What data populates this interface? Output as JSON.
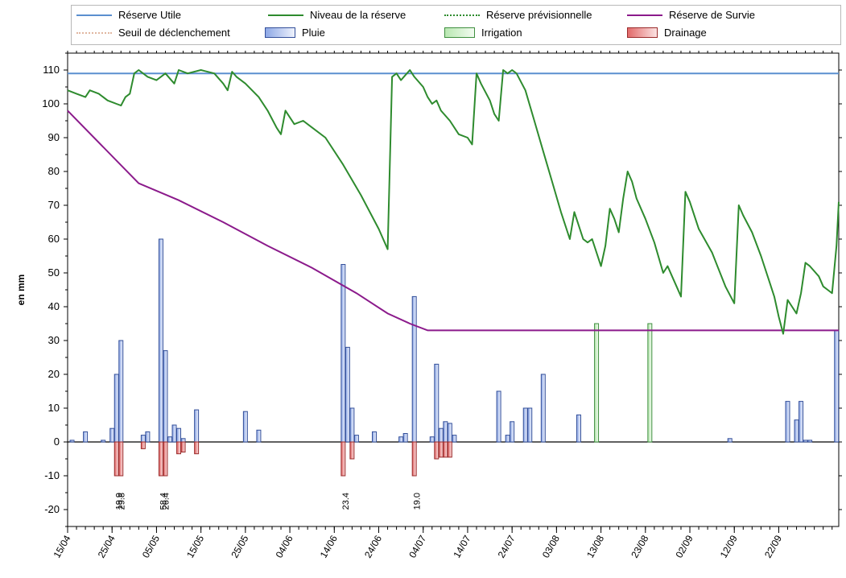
{
  "chart_data": {
    "type": "line",
    "ylabel": "en mm",
    "ylim": [
      -25,
      115
    ],
    "yticks": [
      -20,
      -10,
      0,
      10,
      20,
      30,
      40,
      50,
      60,
      70,
      80,
      90,
      100,
      110
    ],
    "grid": false,
    "legend_position": "top",
    "x_tick_labels": [
      "15/04",
      "25/04",
      "05/05",
      "15/05",
      "25/05",
      "04/06",
      "14/06",
      "24/06",
      "04/07",
      "14/07",
      "24/07",
      "03/08",
      "13/08",
      "23/08",
      "02/09",
      "12/09",
      "22/09"
    ],
    "x_range_days": [
      0,
      162
    ],
    "legend": [
      {
        "name": "Réserve Utile",
        "kind": "line",
        "color": "#5b8fcf",
        "dash": "none"
      },
      {
        "name": "Niveau de la réserve",
        "kind": "line",
        "color": "#2e8b2e",
        "dash": "none"
      },
      {
        "name": "Réserve prévisionnelle",
        "kind": "line",
        "color": "#2e8b2e",
        "dash": "dotted"
      },
      {
        "name": "Réserve de Survie",
        "kind": "line",
        "color": "#8b1a8b",
        "dash": "none"
      },
      {
        "name": "Seuil de déclenchement",
        "kind": "line",
        "color": "#e0b6a0",
        "dash": "dotted"
      },
      {
        "name": "Pluie",
        "kind": "box",
        "color": "#b7c9ef"
      },
      {
        "name": "Irrigation",
        "kind": "box",
        "color": "#d4f0d0"
      },
      {
        "name": "Drainage",
        "kind": "box",
        "color": "#ef9a9a"
      }
    ],
    "reserve_utile": 109,
    "niveau_reserve": [
      [
        0,
        104
      ],
      [
        2,
        103
      ],
      [
        4,
        102
      ],
      [
        5,
        104
      ],
      [
        7,
        103
      ],
      [
        9,
        101
      ],
      [
        11,
        100
      ],
      [
        12,
        99.5
      ],
      [
        13,
        102
      ],
      [
        14,
        103
      ],
      [
        15,
        109
      ],
      [
        16,
        110
      ],
      [
        18,
        108
      ],
      [
        20,
        107
      ],
      [
        22,
        109
      ],
      [
        24,
        106
      ],
      [
        25,
        110
      ],
      [
        27,
        109
      ],
      [
        30,
        110
      ],
      [
        33,
        109
      ],
      [
        35,
        106
      ],
      [
        36,
        104
      ],
      [
        37,
        109.5
      ],
      [
        38,
        108
      ],
      [
        40,
        106
      ],
      [
        43,
        102
      ],
      [
        45,
        98
      ],
      [
        47,
        93
      ],
      [
        48,
        91
      ],
      [
        49,
        98
      ],
      [
        51,
        94
      ],
      [
        53,
        95
      ],
      [
        55,
        93
      ],
      [
        58,
        90
      ],
      [
        62,
        82
      ],
      [
        66,
        73
      ],
      [
        70,
        63
      ],
      [
        72,
        57
      ],
      [
        73,
        108
      ],
      [
        74,
        109
      ],
      [
        75,
        107
      ],
      [
        76,
        108.5
      ],
      [
        77,
        110
      ],
      [
        78,
        108
      ],
      [
        80,
        105
      ],
      [
        81,
        102
      ],
      [
        82,
        100
      ],
      [
        83,
        101
      ],
      [
        84,
        98
      ],
      [
        86,
        95
      ],
      [
        88,
        91
      ],
      [
        90,
        90
      ],
      [
        91,
        88
      ],
      [
        92,
        109
      ],
      [
        93,
        106
      ],
      [
        95,
        101
      ],
      [
        96,
        97
      ],
      [
        97,
        95
      ],
      [
        98,
        110
      ],
      [
        99,
        109
      ],
      [
        100,
        110
      ],
      [
        101,
        109
      ],
      [
        103,
        104
      ],
      [
        105,
        95
      ],
      [
        107,
        86
      ],
      [
        109,
        77
      ],
      [
        111,
        68
      ],
      [
        113,
        60
      ],
      [
        114,
        68
      ],
      [
        115,
        64
      ],
      [
        116,
        60
      ],
      [
        117,
        59
      ],
      [
        118,
        60
      ],
      [
        120,
        52
      ],
      [
        121,
        58
      ],
      [
        122,
        69
      ],
      [
        123,
        66
      ],
      [
        124,
        62
      ],
      [
        125,
        72
      ],
      [
        126,
        80
      ],
      [
        127,
        77
      ],
      [
        128,
        72
      ],
      [
        130,
        66
      ],
      [
        132,
        59
      ],
      [
        134,
        50
      ],
      [
        135,
        52
      ],
      [
        136,
        49
      ],
      [
        137,
        46
      ],
      [
        138,
        43
      ],
      [
        139,
        74
      ],
      [
        140,
        71
      ],
      [
        142,
        63
      ],
      [
        145,
        56
      ],
      [
        148,
        46
      ],
      [
        150,
        41
      ],
      [
        151,
        70
      ],
      [
        152,
        67
      ],
      [
        154,
        62
      ],
      [
        156,
        55
      ],
      [
        158,
        47
      ],
      [
        159,
        43
      ],
      [
        160,
        37
      ],
      [
        161,
        32
      ],
      [
        162,
        42
      ],
      [
        163,
        40
      ],
      [
        164,
        38
      ],
      [
        165,
        44
      ],
      [
        166,
        53
      ],
      [
        167,
        52
      ],
      [
        169,
        49
      ],
      [
        170,
        46
      ],
      [
        171,
        45
      ],
      [
        172,
        44
      ],
      [
        173,
        58
      ],
      [
        173.5,
        71
      ]
    ],
    "reserve_survie": [
      [
        0,
        98
      ],
      [
        16,
        76.5
      ],
      [
        25,
        71.5
      ],
      [
        35,
        65
      ],
      [
        45,
        58
      ],
      [
        55,
        51.5
      ],
      [
        65,
        44
      ],
      [
        72,
        38
      ],
      [
        77,
        35
      ],
      [
        81,
        33
      ],
      [
        173.5,
        33
      ]
    ],
    "pluie": [
      [
        1,
        0.5
      ],
      [
        4,
        3
      ],
      [
        8,
        0.5
      ],
      [
        10,
        4
      ],
      [
        11,
        20
      ],
      [
        12,
        30
      ],
      [
        17,
        2
      ],
      [
        18,
        3
      ],
      [
        21,
        60
      ],
      [
        22,
        27
      ],
      [
        23,
        1.5
      ],
      [
        24,
        5
      ],
      [
        25,
        4
      ],
      [
        26,
        1
      ],
      [
        29,
        9.5
      ],
      [
        40,
        9
      ],
      [
        43,
        3.5
      ],
      [
        62,
        52.5
      ],
      [
        63,
        28
      ],
      [
        64,
        10
      ],
      [
        65,
        2
      ],
      [
        69,
        3
      ],
      [
        75,
        1.5
      ],
      [
        76,
        2.5
      ],
      [
        78,
        43
      ],
      [
        82,
        1.5
      ],
      [
        83,
        23
      ],
      [
        84,
        4
      ],
      [
        85,
        6
      ],
      [
        86,
        5.5
      ],
      [
        87,
        2
      ],
      [
        97,
        15
      ],
      [
        99,
        2
      ],
      [
        100,
        6
      ],
      [
        103,
        10
      ],
      [
        104,
        10
      ],
      [
        107,
        20
      ],
      [
        115,
        8
      ],
      [
        149,
        1
      ],
      [
        162,
        12
      ],
      [
        164,
        6.5
      ],
      [
        165,
        12
      ],
      [
        166,
        0.5
      ],
      [
        167,
        0.5
      ],
      [
        173,
        33
      ]
    ],
    "irrigation": [
      [
        119,
        35
      ],
      [
        131,
        35
      ]
    ],
    "drainage": [
      [
        11,
        -10
      ],
      [
        12,
        -10
      ],
      [
        21,
        -10
      ],
      [
        22,
        -10
      ],
      [
        25,
        -3.5
      ],
      [
        26,
        -3
      ],
      [
        29,
        -3.5
      ],
      [
        17,
        -2
      ],
      [
        62,
        -10
      ],
      [
        64,
        -5
      ],
      [
        78,
        -10
      ],
      [
        83,
        -5
      ],
      [
        84,
        -4.5
      ],
      [
        85,
        -4.5
      ],
      [
        86,
        -4.5
      ]
    ],
    "annotations": [
      {
        "x": 11.5,
        "text": "19.9"
      },
      {
        "x": 12,
        "text": "29.8"
      },
      {
        "x": 21.5,
        "text": "58.4"
      },
      {
        "x": 22,
        "text": "26.4"
      },
      {
        "x": 62.5,
        "text": "23.4"
      },
      {
        "x": 78.5,
        "text": "19.0"
      }
    ]
  }
}
